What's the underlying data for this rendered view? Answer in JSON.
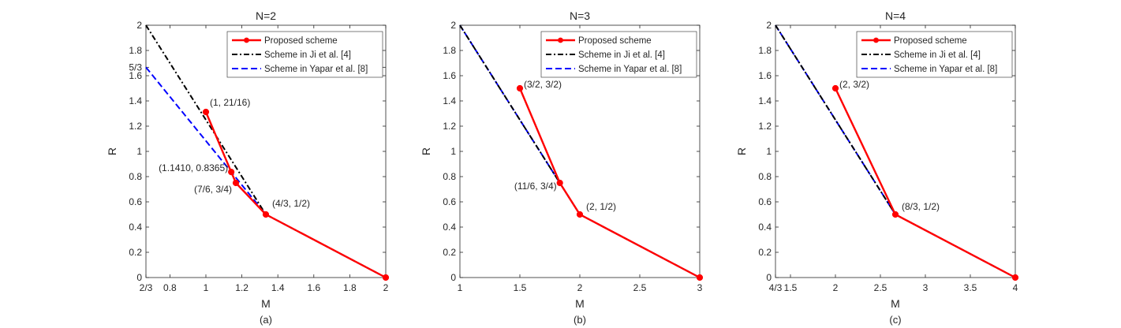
{
  "chart_data": [
    {
      "type": "line",
      "title": "N=2",
      "panel_label": "(a)",
      "xlabel": "M",
      "ylabel": "R",
      "xlim": [
        0.6667,
        2
      ],
      "ylim": [
        0,
        2
      ],
      "xticks": [
        {
          "value": 0.6667,
          "label": "2/3"
        },
        {
          "value": 0.8,
          "label": "0.8"
        },
        {
          "value": 1,
          "label": "1"
        },
        {
          "value": 1.2,
          "label": "1.2"
        },
        {
          "value": 1.4,
          "label": "1.4"
        },
        {
          "value": 1.6,
          "label": "1.6"
        },
        {
          "value": 1.8,
          "label": "1.8"
        },
        {
          "value": 2,
          "label": "2"
        }
      ],
      "yticks": [
        {
          "value": 0,
          "label": "0"
        },
        {
          "value": 0.2,
          "label": "0.2"
        },
        {
          "value": 0.4,
          "label": "0.4"
        },
        {
          "value": 0.6,
          "label": "0.6"
        },
        {
          "value": 0.8,
          "label": "0.8"
        },
        {
          "value": 1,
          "label": "1"
        },
        {
          "value": 1.2,
          "label": "1.2"
        },
        {
          "value": 1.4,
          "label": "1.4"
        },
        {
          "value": 1.6,
          "label": "1.6"
        },
        {
          "value": 1.6667,
          "label": "5/3"
        },
        {
          "value": 1.8,
          "label": "1.8"
        },
        {
          "value": 2,
          "label": "2"
        }
      ],
      "legend_position": "top-right",
      "series": [
        {
          "name": "Proposed scheme",
          "color": "#ff0000",
          "style": "solid-marker",
          "x": [
            1,
            1.141,
            1.1667,
            1.3333,
            2
          ],
          "y": [
            1.3125,
            0.8365,
            0.75,
            0.5,
            0
          ]
        },
        {
          "name": "Scheme in Ji et al. [4]",
          "color": "#000000",
          "style": "dashdot",
          "x": [
            0.6667,
            1.3333,
            2
          ],
          "y": [
            2,
            0.5,
            0
          ]
        },
        {
          "name": "Scheme in Yapar et al. [8]",
          "color": "#0000ff",
          "style": "dashed",
          "x": [
            0.6667,
            1.3333,
            2
          ],
          "y": [
            1.6667,
            0.5,
            0
          ]
        }
      ],
      "annotations": [
        {
          "text": "(1, 21/16)",
          "x": 1,
          "y": 1.3125
        },
        {
          "text": "(1.1410, 0.8365)",
          "x": 1.141,
          "y": 0.8365
        },
        {
          "text": "(7/6, 3/4)",
          "x": 1.1667,
          "y": 0.75
        },
        {
          "text": "(4/3, 1/2)",
          "x": 1.3333,
          "y": 0.5
        }
      ]
    },
    {
      "type": "line",
      "title": "N=3",
      "panel_label": "(b)",
      "xlabel": "M",
      "ylabel": "R",
      "xlim": [
        1,
        3
      ],
      "ylim": [
        0,
        2
      ],
      "xticks": [
        {
          "value": 1,
          "label": "1"
        },
        {
          "value": 1.5,
          "label": "1.5"
        },
        {
          "value": 2,
          "label": "2"
        },
        {
          "value": 2.5,
          "label": "2.5"
        },
        {
          "value": 3,
          "label": "3"
        }
      ],
      "yticks": [
        {
          "value": 0,
          "label": "0"
        },
        {
          "value": 0.2,
          "label": "0.2"
        },
        {
          "value": 0.4,
          "label": "0.4"
        },
        {
          "value": 0.6,
          "label": "0.6"
        },
        {
          "value": 0.8,
          "label": "0.8"
        },
        {
          "value": 1,
          "label": "1"
        },
        {
          "value": 1.2,
          "label": "1.2"
        },
        {
          "value": 1.4,
          "label": "1.4"
        },
        {
          "value": 1.6,
          "label": "1.6"
        },
        {
          "value": 1.8,
          "label": "1.8"
        },
        {
          "value": 2,
          "label": "2"
        }
      ],
      "legend_position": "top-right",
      "series": [
        {
          "name": "Proposed scheme",
          "color": "#ff0000",
          "style": "solid-marker",
          "x": [
            1.5,
            1.8333,
            2,
            3
          ],
          "y": [
            1.5,
            0.75,
            0.5,
            0
          ]
        },
        {
          "name": "Scheme in Ji et al. [4]",
          "color": "#000000",
          "style": "dashdot",
          "x": [
            1,
            2,
            3
          ],
          "y": [
            2,
            0.5,
            0
          ]
        },
        {
          "name": "Scheme in Yapar et al. [8]",
          "color": "#0000ff",
          "style": "dashed",
          "x": [
            1,
            2,
            3
          ],
          "y": [
            2,
            0.5,
            0
          ]
        }
      ],
      "annotations": [
        {
          "text": "(3/2, 3/2)",
          "x": 1.5,
          "y": 1.5
        },
        {
          "text": "(11/6, 3/4)",
          "x": 1.8333,
          "y": 0.75
        },
        {
          "text": "(2, 1/2)",
          "x": 2,
          "y": 0.5
        }
      ]
    },
    {
      "type": "line",
      "title": "N=4",
      "panel_label": "(c)",
      "xlabel": "M",
      "ylabel": "R",
      "xlim": [
        1.3333,
        4
      ],
      "ylim": [
        0,
        2
      ],
      "xticks": [
        {
          "value": 1.3333,
          "label": "4/3"
        },
        {
          "value": 1.5,
          "label": "1.5"
        },
        {
          "value": 2,
          "label": "2"
        },
        {
          "value": 2.5,
          "label": "2.5"
        },
        {
          "value": 3,
          "label": "3"
        },
        {
          "value": 3.5,
          "label": "3.5"
        },
        {
          "value": 4,
          "label": "4"
        }
      ],
      "yticks": [
        {
          "value": 0,
          "label": "0"
        },
        {
          "value": 0.2,
          "label": "0.2"
        },
        {
          "value": 0.4,
          "label": "0.4"
        },
        {
          "value": 0.6,
          "label": "0.6"
        },
        {
          "value": 0.8,
          "label": "0.8"
        },
        {
          "value": 1,
          "label": "1"
        },
        {
          "value": 1.2,
          "label": "1.2"
        },
        {
          "value": 1.4,
          "label": "1.4"
        },
        {
          "value": 1.6,
          "label": "1.6"
        },
        {
          "value": 1.8,
          "label": "1.8"
        },
        {
          "value": 2,
          "label": "2"
        }
      ],
      "legend_position": "top-right",
      "series": [
        {
          "name": "Proposed scheme",
          "color": "#ff0000",
          "style": "solid-marker",
          "x": [
            2,
            2.6667,
            4
          ],
          "y": [
            1.5,
            0.5,
            0
          ]
        },
        {
          "name": "Scheme in Ji et al. [4]",
          "color": "#000000",
          "style": "dashdot",
          "x": [
            1.3333,
            2.6667,
            4
          ],
          "y": [
            2,
            0.5,
            0
          ]
        },
        {
          "name": "Scheme in Yapar et al. [8]",
          "color": "#0000ff",
          "style": "dashed",
          "x": [
            1.3333,
            2.6667,
            4
          ],
          "y": [
            2,
            0.5,
            0
          ]
        }
      ],
      "annotations": [
        {
          "text": "(2, 3/2)",
          "x": 2,
          "y": 1.5
        },
        {
          "text": "(8/3, 1/2)",
          "x": 2.6667,
          "y": 0.5
        }
      ]
    }
  ]
}
